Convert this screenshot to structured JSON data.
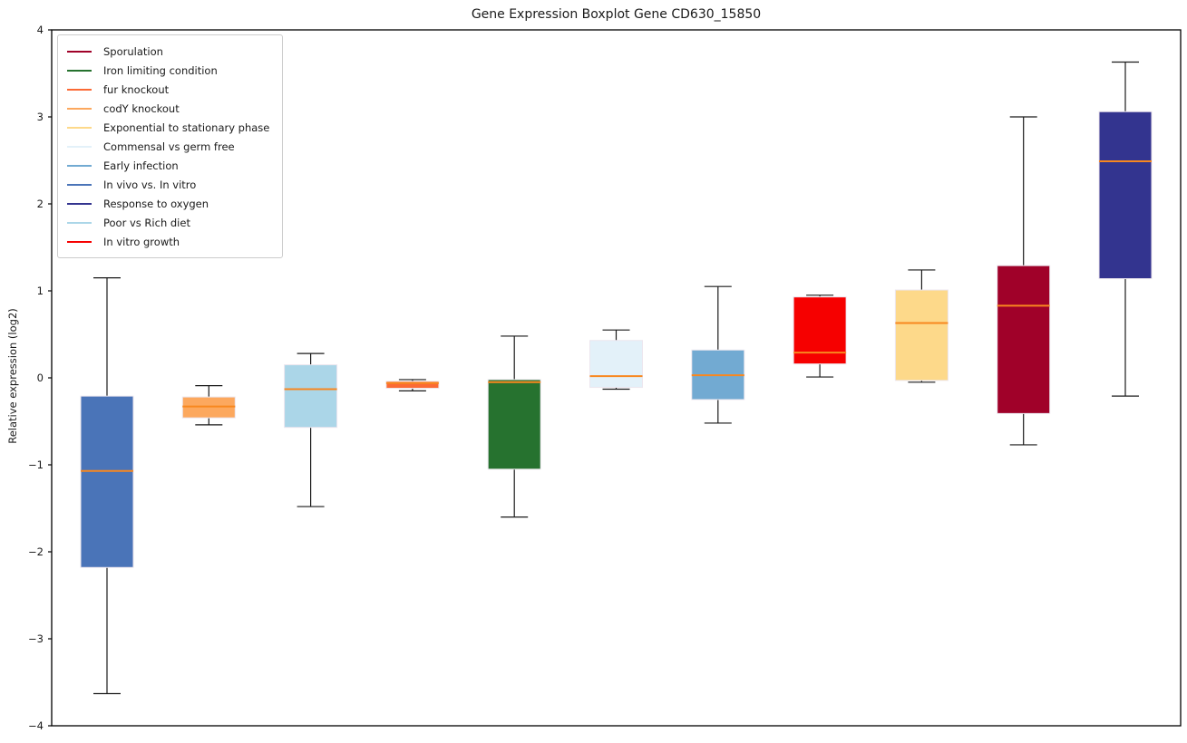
{
  "chart_data": {
    "type": "boxplot",
    "title": "Gene Expression Boxplot Gene CD630_15850",
    "xlabel": "",
    "ylabel": "Relative expression (log2)",
    "ylim": [
      -4,
      4
    ],
    "ytick_values": [
      4,
      3,
      2,
      1,
      0,
      -1,
      -2,
      -3,
      -4
    ],
    "ytick_labels": [
      "4",
      "3",
      "2",
      "1",
      "0",
      "−1",
      "−2",
      "−3",
      "−4"
    ],
    "grid": false,
    "legend_position": "upper-left",
    "median_color": "#F8871F",
    "whisker_color": "#1a1a1a",
    "box_edge_color": "#ece6ee",
    "legend": [
      {
        "label": "Sporulation",
        "color": "#A00129"
      },
      {
        "label": "Iron limiting condition",
        "color": "#26722F"
      },
      {
        "label": "fur knockout",
        "color": "#FB6A35"
      },
      {
        "label": "codY knockout",
        "color": "#FCA85E"
      },
      {
        "label": "Exponential to stationary phase",
        "color": "#FDD98A"
      },
      {
        "label": "Commensal vs germ free",
        "color": "#E3F1F9"
      },
      {
        "label": "Early infection",
        "color": "#72AAD2"
      },
      {
        "label": "In vivo vs. In vitro",
        "color": "#4A74B8"
      },
      {
        "label": "Response to oxygen",
        "color": "#33348F"
      },
      {
        "label": "Poor vs Rich diet",
        "color": "#ABD6E8"
      },
      {
        "label": "In vitro growth",
        "color": "#F60000"
      }
    ],
    "series": [
      {
        "name": "In vivo vs. In vitro",
        "color": "#4A74B8",
        "whisker_low": -3.63,
        "q1": -2.18,
        "median": -1.07,
        "q3": -0.21,
        "whisker_high": 1.15
      },
      {
        "name": "codY knockout",
        "color": "#FCA85E",
        "whisker_low": -0.54,
        "q1": -0.46,
        "median": -0.33,
        "q3": -0.22,
        "whisker_high": -0.09
      },
      {
        "name": "Poor vs Rich diet",
        "color": "#ABD6E8",
        "whisker_low": -1.48,
        "q1": -0.57,
        "median": -0.13,
        "q3": 0.15,
        "whisker_high": 0.28
      },
      {
        "name": "fur knockout",
        "color": "#FB6A35",
        "whisker_low": -0.15,
        "q1": -0.12,
        "median": -0.06,
        "q3": -0.04,
        "whisker_high": -0.02
      },
      {
        "name": "Iron limiting condition",
        "color": "#26722F",
        "whisker_low": -1.6,
        "q1": -1.05,
        "median": -0.05,
        "q3": -0.02,
        "whisker_high": 0.48
      },
      {
        "name": "Commensal vs germ free",
        "color": "#E3F1F9",
        "whisker_low": -0.13,
        "q1": -0.11,
        "median": 0.02,
        "q3": 0.43,
        "whisker_high": 0.55
      },
      {
        "name": "Early infection",
        "color": "#72AAD2",
        "whisker_low": -0.52,
        "q1": -0.25,
        "median": 0.03,
        "q3": 0.32,
        "whisker_high": 1.05
      },
      {
        "name": "In vitro growth",
        "color": "#F60000",
        "whisker_low": 0.01,
        "q1": 0.16,
        "median": 0.29,
        "q3": 0.93,
        "whisker_high": 0.95
      },
      {
        "name": "Exponential to stationary phase",
        "color": "#FDD98A",
        "whisker_low": -0.05,
        "q1": -0.03,
        "median": 0.63,
        "q3": 1.01,
        "whisker_high": 1.24
      },
      {
        "name": "Sporulation",
        "color": "#A00129",
        "whisker_low": -0.77,
        "q1": -0.41,
        "median": 0.83,
        "q3": 1.29,
        "whisker_high": 3.0
      },
      {
        "name": "Response to oxygen",
        "color": "#33348F",
        "whisker_low": -0.21,
        "q1": 1.14,
        "median": 2.49,
        "q3": 3.06,
        "whisker_high": 3.63
      }
    ]
  }
}
